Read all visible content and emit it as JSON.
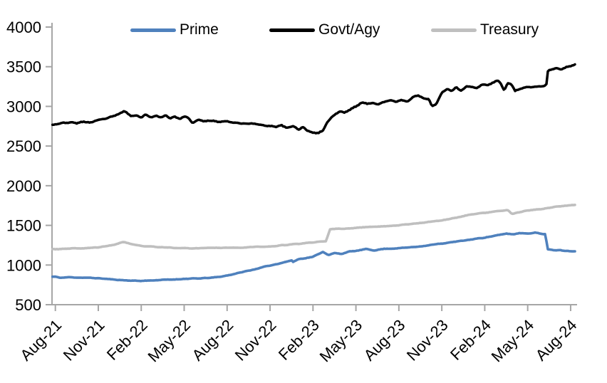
{
  "chart_data": {
    "type": "line",
    "title": "",
    "xlabel": "",
    "ylabel": "",
    "grid": false,
    "legend_position": "top",
    "y_ticks": [
      4000,
      3500,
      3000,
      2500,
      2000,
      1500,
      1000,
      500
    ],
    "ylim": [
      500,
      4000
    ],
    "x_tick_labels": [
      "Aug-21",
      "Nov-21",
      "Feb-22",
      "May-22",
      "Aug-22",
      "Nov-22",
      "Feb-23",
      "May-23",
      "Aug-23",
      "Nov-23",
      "Feb-24",
      "May-24",
      "Aug-24"
    ],
    "x_unit": "months since Aug-21",
    "axis_color": "#a6a6a6",
    "tick_label_color": "#000000",
    "series": [
      {
        "name": "Prime",
        "color": "#4f81bd",
        "points": [
          [
            0,
            852
          ],
          [
            0.3,
            840
          ],
          [
            1,
            846
          ],
          [
            2,
            840
          ],
          [
            3,
            834
          ],
          [
            4,
            818
          ],
          [
            5,
            806
          ],
          [
            6,
            800
          ],
          [
            7,
            809
          ],
          [
            8,
            816
          ],
          [
            9,
            826
          ],
          [
            10,
            830
          ],
          [
            11,
            841
          ],
          [
            11.5,
            852
          ],
          [
            12,
            868
          ],
          [
            13,
            908
          ],
          [
            14,
            950
          ],
          [
            15,
            994
          ],
          [
            16,
            1036
          ],
          [
            16.5,
            1058
          ],
          [
            16.6,
            1040
          ],
          [
            17,
            1075
          ],
          [
            18,
            1103
          ],
          [
            18.7,
            1168
          ],
          [
            19.1,
            1125
          ],
          [
            19.5,
            1150
          ],
          [
            20,
            1142
          ],
          [
            20.5,
            1168
          ],
          [
            21,
            1178
          ],
          [
            21.7,
            1200
          ],
          [
            22.3,
            1186
          ],
          [
            23,
            1205
          ],
          [
            24,
            1212
          ],
          [
            25,
            1227
          ],
          [
            26,
            1247
          ],
          [
            27,
            1271
          ],
          [
            28,
            1294
          ],
          [
            29,
            1321
          ],
          [
            30,
            1347
          ],
          [
            31,
            1377
          ],
          [
            31.5,
            1397
          ],
          [
            32,
            1386
          ],
          [
            32.4,
            1404
          ],
          [
            33,
            1399
          ],
          [
            33.5,
            1409
          ],
          [
            34,
            1393
          ],
          [
            34.25,
            1391
          ],
          [
            34.38,
            1197
          ],
          [
            34.8,
            1186
          ],
          [
            35.2,
            1192
          ],
          [
            35.6,
            1180
          ],
          [
            36.3,
            1174
          ]
        ]
      },
      {
        "name": "Govt/Agy",
        "color": "#000000",
        "points": [
          [
            0,
            2778
          ],
          [
            0.5,
            2790
          ],
          [
            1,
            2798
          ],
          [
            1.5,
            2788
          ],
          [
            2,
            2806
          ],
          [
            2.5,
            2798
          ],
          [
            3,
            2818
          ],
          [
            3.5,
            2845
          ],
          [
            4,
            2866
          ],
          [
            4.5,
            2912
          ],
          [
            4.8,
            2936
          ],
          [
            5,
            2918
          ],
          [
            5.3,
            2875
          ],
          [
            5.7,
            2898
          ],
          [
            6,
            2860
          ],
          [
            6.3,
            2896
          ],
          [
            6.7,
            2862
          ],
          [
            7,
            2884
          ],
          [
            7.3,
            2856
          ],
          [
            7.7,
            2892
          ],
          [
            8,
            2852
          ],
          [
            8.3,
            2872
          ],
          [
            8.7,
            2842
          ],
          [
            9,
            2866
          ],
          [
            9.3,
            2848
          ],
          [
            9.6,
            2790
          ],
          [
            10,
            2828
          ],
          [
            10.4,
            2812
          ],
          [
            11,
            2822
          ],
          [
            11.5,
            2810
          ],
          [
            12,
            2812
          ],
          [
            12.5,
            2798
          ],
          [
            13,
            2790
          ],
          [
            13.5,
            2782
          ],
          [
            14,
            2778
          ],
          [
            14.5,
            2768
          ],
          [
            15,
            2752
          ],
          [
            15.4,
            2738
          ],
          [
            15.8,
            2758
          ],
          [
            16.2,
            2728
          ],
          [
            16.6,
            2748
          ],
          [
            17,
            2712
          ],
          [
            17.3,
            2736
          ],
          [
            17.6,
            2696
          ],
          [
            18,
            2676
          ],
          [
            18.35,
            2660
          ],
          [
            18.7,
            2700
          ],
          [
            19,
            2800
          ],
          [
            19.3,
            2868
          ],
          [
            19.6,
            2905
          ],
          [
            19.9,
            2938
          ],
          [
            20.2,
            2920
          ],
          [
            20.6,
            2962
          ],
          [
            21,
            3002
          ],
          [
            21.4,
            3046
          ],
          [
            21.8,
            3030
          ],
          [
            22.2,
            3052
          ],
          [
            22.6,
            3032
          ],
          [
            23,
            3052
          ],
          [
            23.4,
            3072
          ],
          [
            23.8,
            3058
          ],
          [
            24.2,
            3082
          ],
          [
            24.6,
            3062
          ],
          [
            25,
            3118
          ],
          [
            25.4,
            3132
          ],
          [
            25.8,
            3102
          ],
          [
            26.1,
            3092
          ],
          [
            26.3,
            3002
          ],
          [
            26.6,
            3032
          ],
          [
            27,
            3182
          ],
          [
            27.4,
            3218
          ],
          [
            27.7,
            3192
          ],
          [
            28,
            3246
          ],
          [
            28.3,
            3196
          ],
          [
            28.7,
            3252
          ],
          [
            29,
            3246
          ],
          [
            29.4,
            3226
          ],
          [
            29.8,
            3282
          ],
          [
            30.2,
            3272
          ],
          [
            30.6,
            3302
          ],
          [
            30.9,
            3332
          ],
          [
            31.1,
            3296
          ],
          [
            31.35,
            3202
          ],
          [
            31.6,
            3292
          ],
          [
            31.9,
            3270
          ],
          [
            32.1,
            3198
          ],
          [
            32.5,
            3225
          ],
          [
            33,
            3236
          ],
          [
            33.5,
            3246
          ],
          [
            34,
            3256
          ],
          [
            34.3,
            3262
          ],
          [
            34.42,
            3452
          ],
          [
            34.7,
            3470
          ],
          [
            35,
            3482
          ],
          [
            35.3,
            3462
          ],
          [
            35.7,
            3492
          ],
          [
            36,
            3508
          ],
          [
            36.3,
            3528
          ]
        ]
      },
      {
        "name": "Treasury",
        "color": "#bfbfbf",
        "points": [
          [
            0,
            1200
          ],
          [
            1,
            1206
          ],
          [
            2,
            1212
          ],
          [
            3,
            1222
          ],
          [
            4,
            1252
          ],
          [
            4.8,
            1292
          ],
          [
            5.3,
            1262
          ],
          [
            6,
            1242
          ],
          [
            7,
            1228
          ],
          [
            8,
            1222
          ],
          [
            9,
            1212
          ],
          [
            10,
            1212
          ],
          [
            11,
            1218
          ],
          [
            12,
            1222
          ],
          [
            13,
            1220
          ],
          [
            14,
            1228
          ],
          [
            15,
            1232
          ],
          [
            16,
            1252
          ],
          [
            17,
            1266
          ],
          [
            18,
            1286
          ],
          [
            18.9,
            1298
          ],
          [
            19.2,
            1452
          ],
          [
            19.6,
            1462
          ],
          [
            20,
            1452
          ],
          [
            21,
            1468
          ],
          [
            22,
            1482
          ],
          [
            23,
            1490
          ],
          [
            24,
            1502
          ],
          [
            25,
            1522
          ],
          [
            26,
            1542
          ],
          [
            27,
            1564
          ],
          [
            28,
            1596
          ],
          [
            29,
            1638
          ],
          [
            30,
            1658
          ],
          [
            31,
            1682
          ],
          [
            31.6,
            1690
          ],
          [
            31.9,
            1644
          ],
          [
            32.2,
            1658
          ],
          [
            33,
            1684
          ],
          [
            34,
            1706
          ],
          [
            35,
            1734
          ],
          [
            36.3,
            1758
          ]
        ]
      }
    ]
  },
  "legend": {
    "items": [
      {
        "label": "Prime"
      },
      {
        "label": "Govt/Agy"
      },
      {
        "label": "Treasury"
      }
    ]
  }
}
